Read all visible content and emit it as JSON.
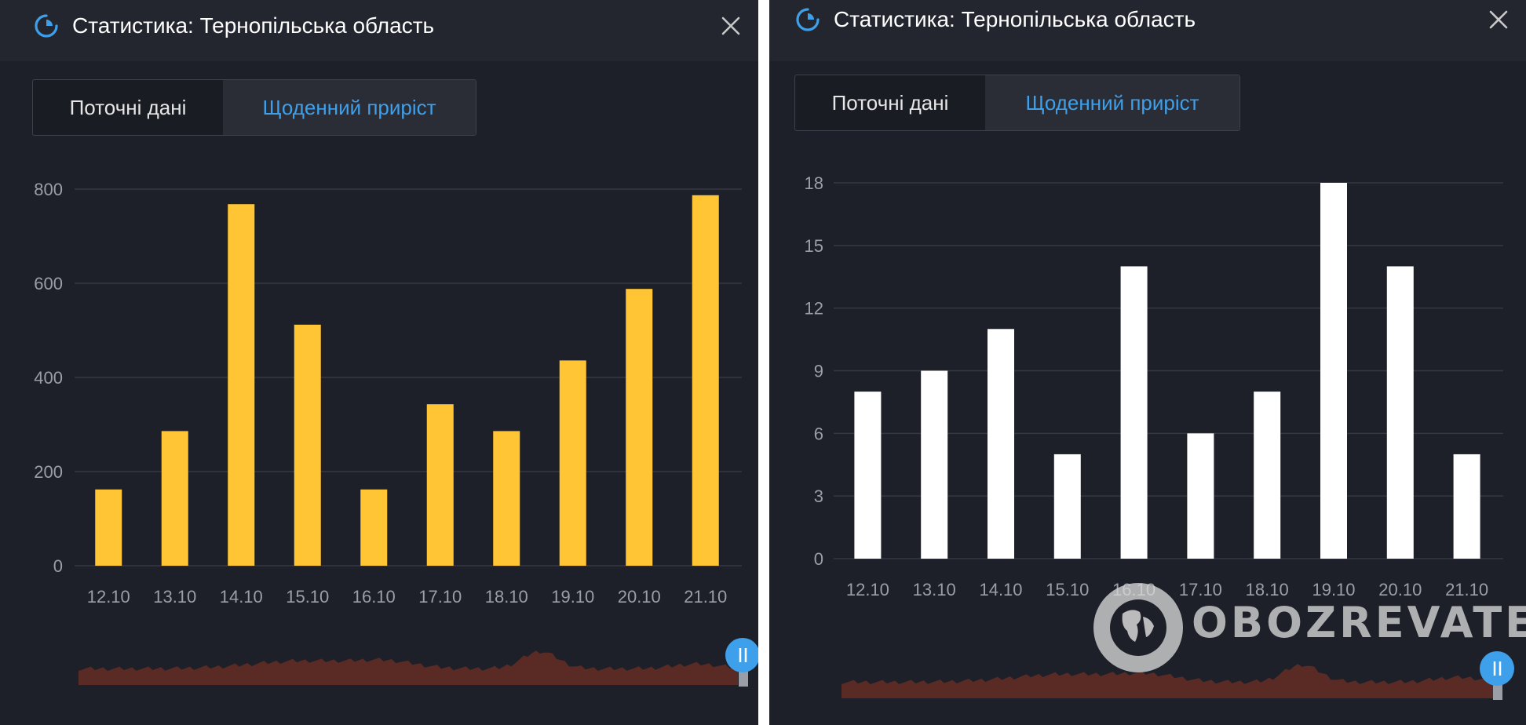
{
  "panels": [
    {
      "title": "Статистика: Тернопільська область",
      "tabs": {
        "current": "Поточні дані",
        "daily": "Щоденний приріст"
      },
      "chart_data": {
        "type": "bar",
        "categories": [
          "12.10",
          "13.10",
          "14.10",
          "15.10",
          "16.10",
          "17.10",
          "18.10",
          "19.10",
          "20.10",
          "21.10"
        ],
        "values": [
          162,
          286,
          768,
          512,
          162,
          343,
          286,
          436,
          588,
          787
        ],
        "yticks": [
          0,
          200,
          400,
          600,
          800
        ],
        "ylim": [
          0,
          800
        ],
        "bar_color": "#ffc534",
        "grid": true
      }
    },
    {
      "title": "Статистика: Тернопільська область",
      "tabs": {
        "current": "Поточні дані",
        "daily": "Щоденний приріст"
      },
      "chart_data": {
        "type": "bar",
        "categories": [
          "12.10",
          "13.10",
          "14.10",
          "15.10",
          "16.10",
          "17.10",
          "18.10",
          "19.10",
          "20.10",
          "21.10"
        ],
        "values": [
          8,
          9,
          11,
          5,
          14,
          6,
          8,
          18,
          14,
          5
        ],
        "yticks": [
          0,
          3,
          6,
          9,
          12,
          15,
          18
        ],
        "ylim": [
          0,
          18
        ],
        "bar_color": "#ffffff",
        "grid": true
      }
    }
  ],
  "watermark": {
    "text": "OBOZREVATEL"
  },
  "colors": {
    "background": "#1e2029",
    "titlebar": "#23262f",
    "accent_blue": "#3ea0ea",
    "grid": "#353842",
    "overview_area": "#5a2b24"
  },
  "icons": {
    "title": "pie-chart-icon",
    "close": "close-icon",
    "scroll_handle": "range-handle-icon"
  }
}
